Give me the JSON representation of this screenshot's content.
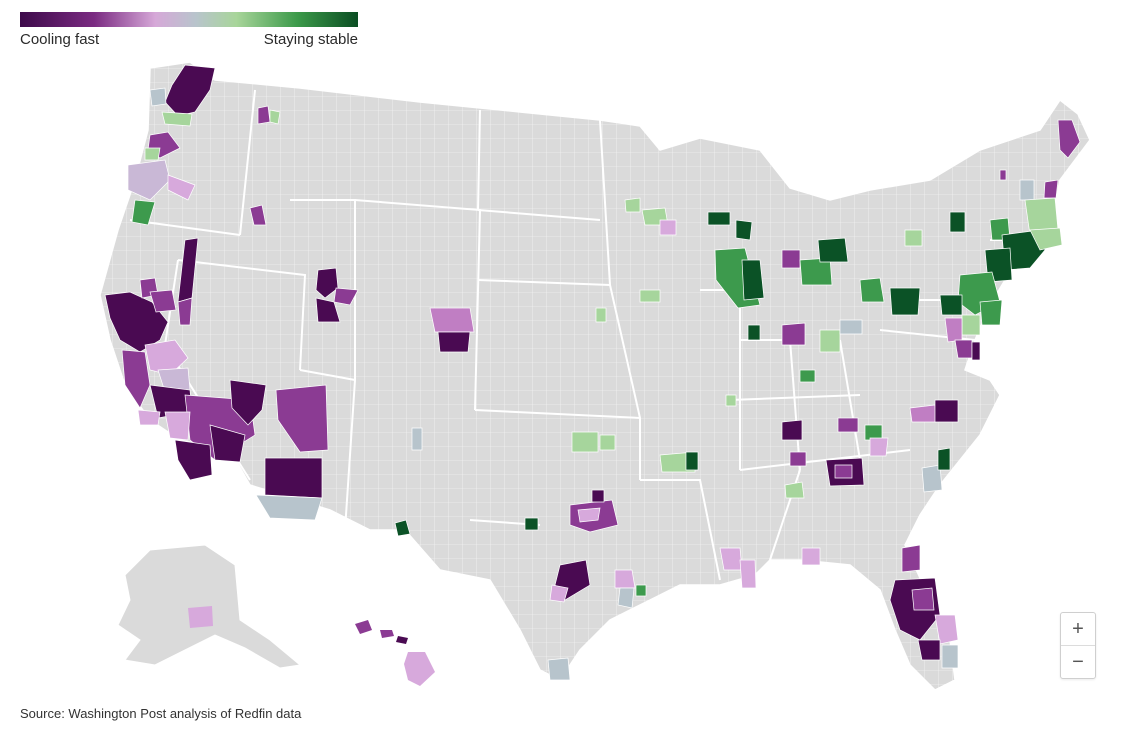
{
  "legend": {
    "left_label": "Cooling fast",
    "right_label": "Staying stable",
    "colors": [
      "#3d0a4a",
      "#7b2b82",
      "#d6a8d8",
      "#b8c4cc",
      "#a8d59a",
      "#3c9a4a",
      "#0a4d22"
    ]
  },
  "map": {
    "base_fill": "#dadada",
    "border_color": "#ffffff",
    "palette": {
      "dark_purple": "#4a0a52",
      "purple": "#8b3b93",
      "light_purple": "#d7a9dc",
      "gray_blue": "#b7c4cc",
      "light_green": "#a6d59c",
      "green": "#3d9a4d",
      "dark_green": "#0b5226"
    }
  },
  "controls": {
    "zoom_in": "+",
    "zoom_out": "−"
  },
  "source": "Source: Washington Post analysis of Redfin data"
}
